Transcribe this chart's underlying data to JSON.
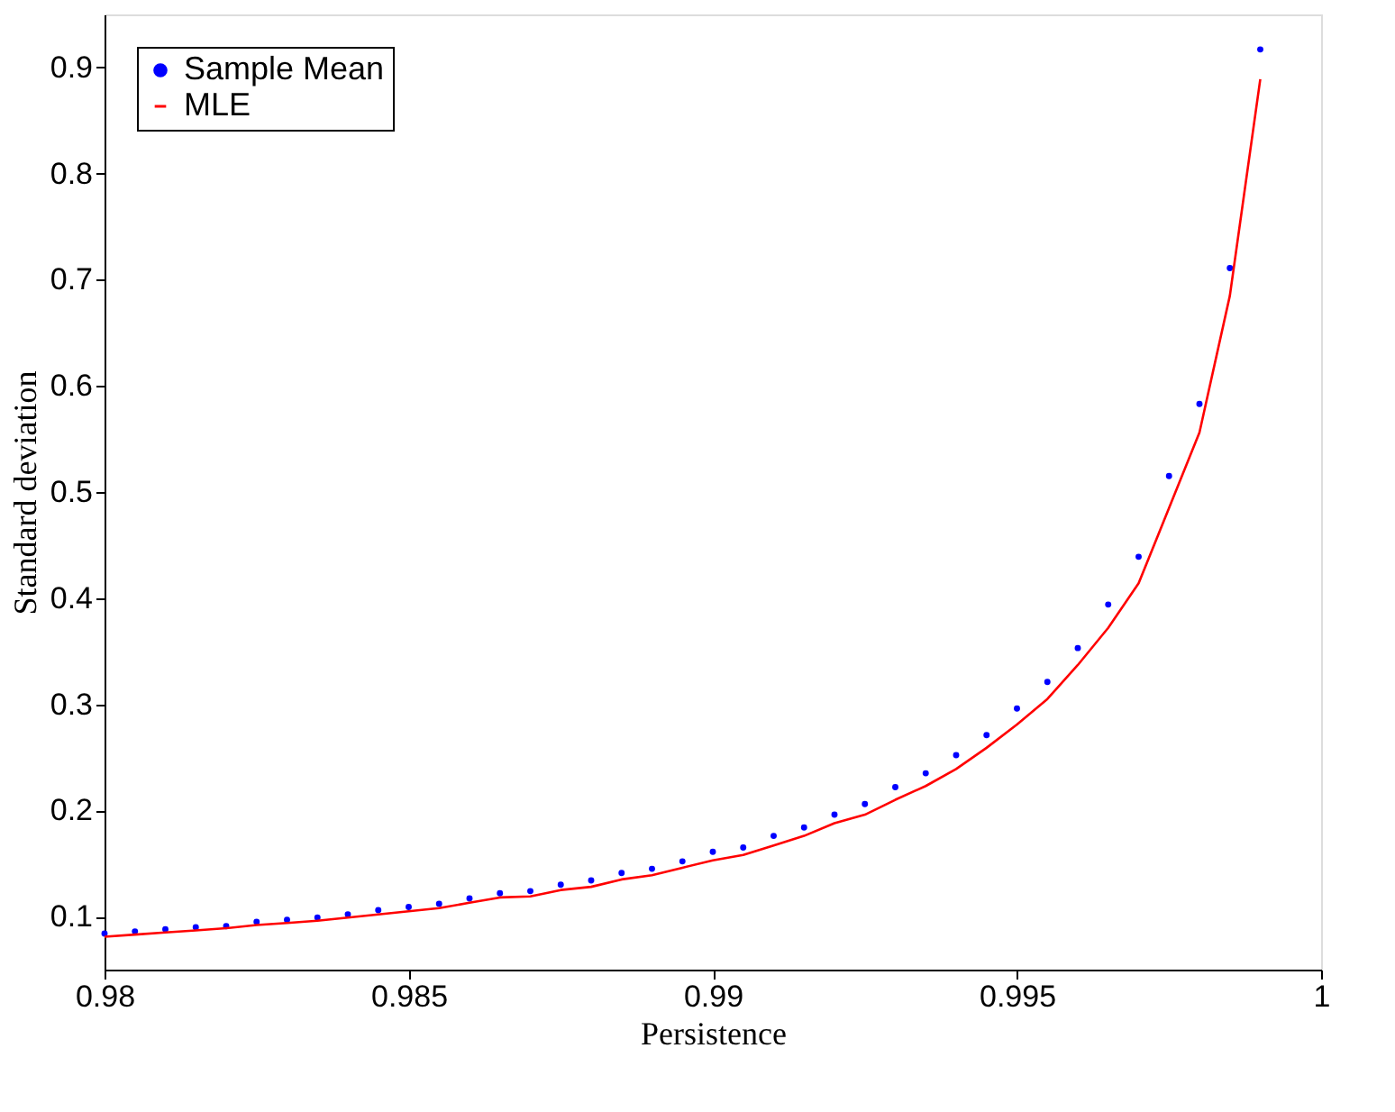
{
  "chart_data": {
    "type": "scatter",
    "xlabel": "Persistence",
    "ylabel": "Standard deviation",
    "x": [
      0.98,
      0.9805,
      0.981,
      0.9815,
      0.982,
      0.9825,
      0.983,
      0.9835,
      0.984,
      0.9845,
      0.985,
      0.9855,
      0.986,
      0.9865,
      0.987,
      0.9875,
      0.988,
      0.9885,
      0.989,
      0.9895,
      0.99,
      0.9905,
      0.991,
      0.9915,
      0.992,
      0.9925,
      0.993,
      0.9935,
      0.994,
      0.9945,
      0.995,
      0.9955,
      0.996,
      0.9965,
      0.997,
      0.9975,
      0.998,
      0.9985,
      0.999
    ],
    "series": [
      {
        "name": "Sample Mean",
        "marker": "circle",
        "color": "#0000ff",
        "values": [
          0.084,
          0.086,
          0.088,
          0.09,
          0.091,
          0.095,
          0.097,
          0.099,
          0.102,
          0.106,
          0.109,
          0.112,
          0.117,
          0.122,
          0.124,
          0.13,
          0.134,
          0.141,
          0.145,
          0.152,
          0.161,
          0.165,
          0.176,
          0.184,
          0.196,
          0.206,
          0.222,
          0.235,
          0.252,
          0.271,
          0.296,
          0.321,
          0.353,
          0.394,
          0.439,
          0.515,
          0.583,
          0.711,
          0.917
        ]
      },
      {
        "name": "MLE",
        "type": "line",
        "line_style": "solid",
        "marker": "none",
        "color": "#ff0000",
        "values": [
          0.081,
          0.083,
          0.085,
          0.087,
          0.089,
          0.092,
          0.094,
          0.096,
          0.099,
          0.102,
          0.105,
          0.108,
          0.113,
          0.118,
          0.119,
          0.125,
          0.128,
          0.135,
          0.139,
          0.146,
          0.153,
          0.158,
          0.167,
          0.176,
          0.188,
          0.196,
          0.21,
          0.223,
          0.239,
          0.259,
          0.281,
          0.305,
          0.337,
          0.372,
          0.414,
          0.485,
          0.556,
          0.685,
          0.889
        ]
      }
    ],
    "xlim": [
      0.98,
      1.0
    ],
    "ylim": [
      0.05,
      0.95
    ],
    "xticks": [
      0.98,
      0.985,
      0.99,
      0.995,
      {
        "value": 1.0,
        "label": "1"
      }
    ],
    "yticks": [
      0.1,
      0.2,
      0.3,
      0.4,
      0.5,
      0.6,
      0.7,
      0.8,
      0.9
    ],
    "legend": "top left",
    "grid": false
  }
}
